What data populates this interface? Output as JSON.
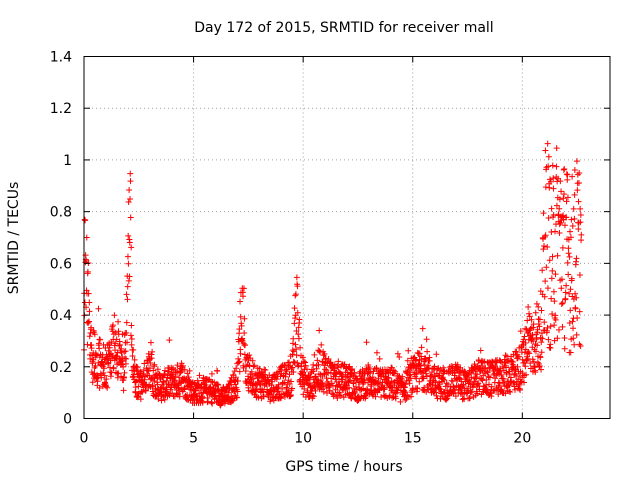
{
  "chart_data": {
    "type": "scatter",
    "title": "Day 172 of 2015, SRMTID for receiver mall",
    "xlabel": "GPS time / hours",
    "ylabel": "SRMTID / TECUs",
    "xlim": [
      0,
      24
    ],
    "ylim": [
      0,
      1.4
    ],
    "xticks": [
      0,
      5,
      10,
      15,
      20
    ],
    "xtick_labels": [
      "0",
      "5",
      "10",
      "15",
      "20"
    ],
    "yticks": [
      0,
      0.2,
      0.4,
      0.6,
      0.8,
      1.0,
      1.2,
      1.4
    ],
    "ytick_labels": [
      "0",
      "0.2",
      "0.4",
      "0.6",
      "0.8",
      "1",
      "1.2",
      "1.4"
    ],
    "grid": true,
    "marker": "+",
    "series": [
      {
        "name": "SRMTID",
        "color": "#ff0000",
        "profile": {
          "x": [
            0.0,
            0.05,
            0.3,
            0.6,
            1.0,
            1.5,
            1.8,
            2.0,
            2.1,
            2.2,
            2.5,
            3.0,
            3.5,
            4.0,
            4.5,
            5.0,
            5.5,
            6.0,
            6.5,
            7.0,
            7.2,
            7.4,
            7.8,
            8.5,
            9.0,
            9.5,
            9.7,
            9.9,
            10.3,
            10.8,
            11.5,
            12.0,
            12.5,
            13.0,
            13.5,
            14.0,
            14.5,
            15.0,
            15.5,
            16.0,
            16.5,
            17.0,
            17.5,
            18.0,
            18.5,
            19.0,
            19.5,
            20.0,
            20.3,
            20.6,
            20.9,
            21.1,
            21.3,
            21.6,
            21.9,
            22.2,
            22.5,
            22.7
          ],
          "y": [
            0.3,
            0.7,
            0.25,
            0.22,
            0.2,
            0.28,
            0.16,
            0.5,
            0.75,
            0.2,
            0.12,
            0.18,
            0.12,
            0.14,
            0.15,
            0.1,
            0.11,
            0.1,
            0.08,
            0.15,
            0.45,
            0.18,
            0.15,
            0.12,
            0.14,
            0.16,
            0.42,
            0.18,
            0.12,
            0.2,
            0.14,
            0.15,
            0.12,
            0.15,
            0.13,
            0.14,
            0.11,
            0.16,
            0.2,
            0.14,
            0.13,
            0.15,
            0.12,
            0.16,
            0.15,
            0.16,
            0.18,
            0.2,
            0.3,
            0.3,
            0.35,
            0.7,
            0.55,
            0.65,
            0.6,
            0.55,
            0.6,
            0.6
          ]
        }
      }
    ]
  }
}
